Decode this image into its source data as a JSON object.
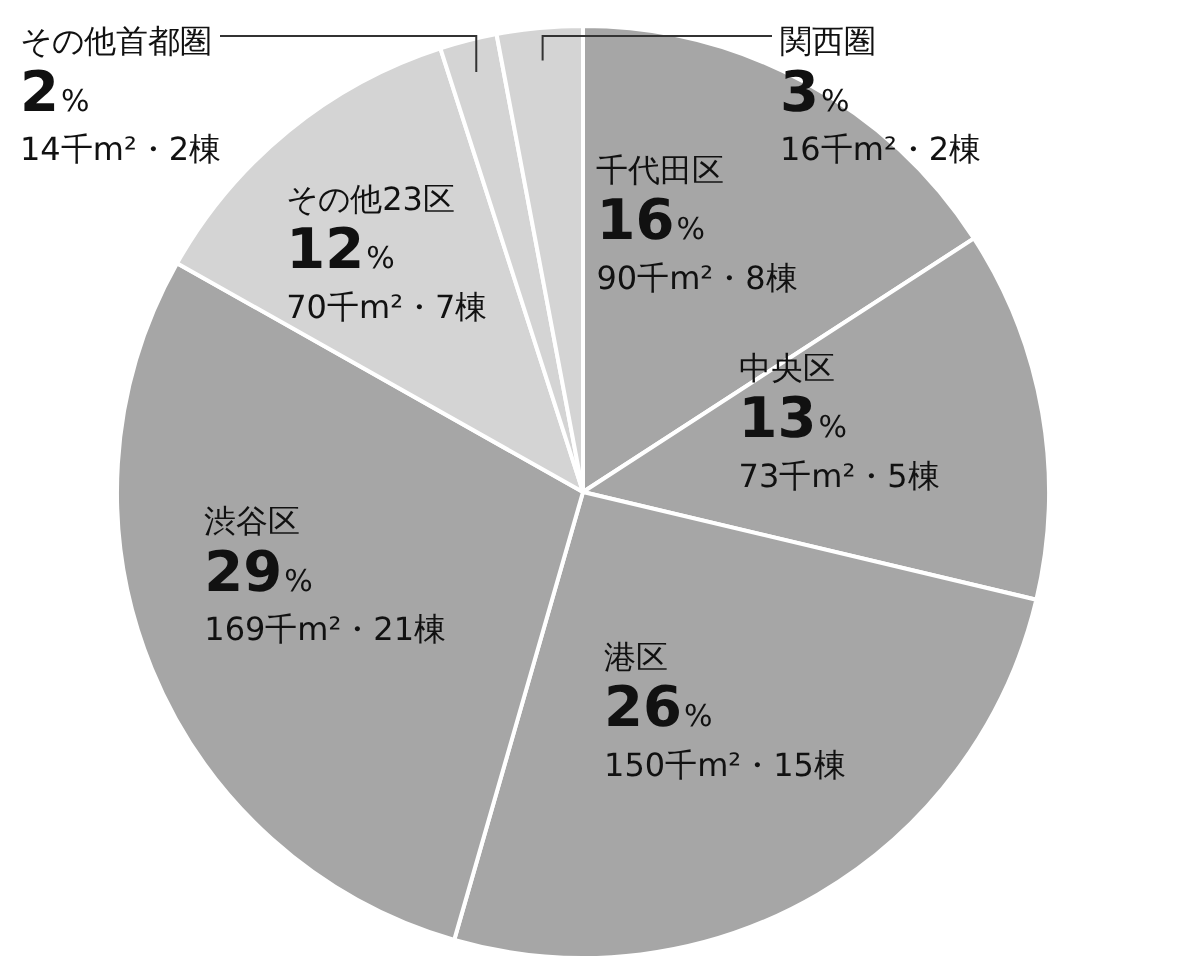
{
  "chart_data": {
    "type": "pie",
    "categories": [
      "千代田区",
      "中央区",
      "港区",
      "渋谷区",
      "その他23区",
      "その他首都圏",
      "関西圏"
    ],
    "values": [
      16,
      13,
      26,
      29,
      12,
      2,
      3
    ],
    "colors": [
      "#a6a6a6",
      "#a6a6a6",
      "#a6a6a6",
      "#a6a6a6",
      "#d4d4d4",
      "#d4d4d4",
      "#d4d4d4"
    ],
    "value_labels": [
      "16%",
      "13%",
      "26%",
      "29%",
      "12%",
      "2%",
      "3%"
    ],
    "annotations": [
      "90千m²・8棟",
      "73千m²・5棟",
      "150千m²・15棟",
      "169千m²・21棟",
      "70千m²・7棟",
      "14千m²・2棟",
      "16千m²・2棟"
    ],
    "legend": false
  }
}
